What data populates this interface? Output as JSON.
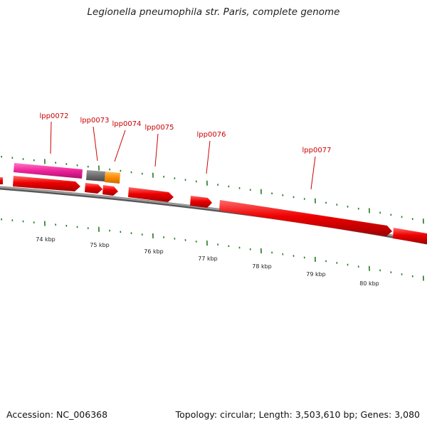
{
  "title": "Legionella pneumophila str. Paris, complete genome",
  "footer": {
    "accession": "Accession: NC_006368",
    "summary": "Topology: circular; Length: 3,503,610 bp; Genes: 3,080"
  },
  "colors": {
    "label": "#cc0000",
    "gene": "#ee0000",
    "tick": "#1f7a1f",
    "backbone": "#808080",
    "magenta": "#ee2299",
    "gray_feature": "#6e6e6e",
    "orange_feature": "#ff8c00"
  },
  "gene_labels": [
    "lpp0072",
    "lpp0073",
    "lpp0074",
    "lpp0075",
    "lpp0076",
    "lpp0077"
  ],
  "scale_labels": [
    "74 kbp",
    "75 kbp",
    "76 kbp",
    "77 kbp",
    "78 kbp",
    "79 kbp",
    "80 kbp"
  ]
}
